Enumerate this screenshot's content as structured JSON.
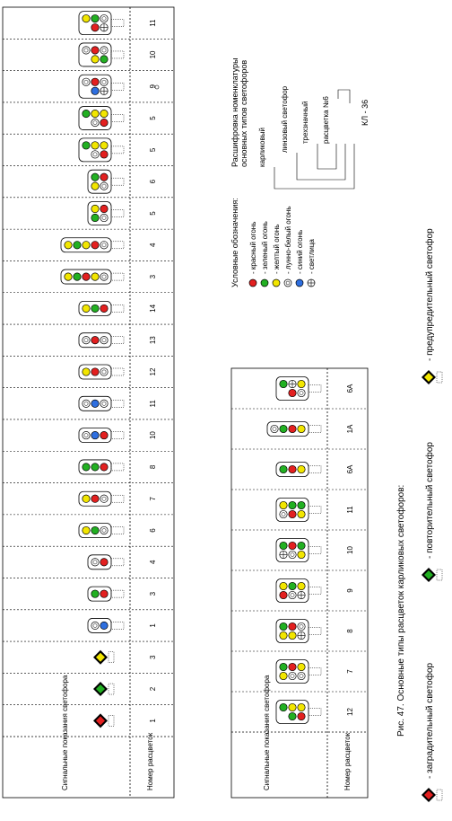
{
  "caption": "Рис. 47. Основные типы расцветок карликовых светофоров:",
  "header_signals": "Сигнальные показания светофора",
  "header_number": "Номер расцветок",
  "legend": {
    "title": "Условные обозначения:",
    "items": [
      {
        "type": "R",
        "label": "- красный огонь"
      },
      {
        "type": "G",
        "label": "- зеленый огонь"
      },
      {
        "type": "Y",
        "label": "- желтый огонь"
      },
      {
        "type": "W",
        "label": "- лунно-белый огонь"
      },
      {
        "type": "B",
        "label": "- синий огонь"
      },
      {
        "type": "X",
        "label": "- светлица"
      }
    ]
  },
  "nomenclature": {
    "title_line1": "Расшифровка номенклатуры",
    "title_line2": "основных типов светофоров",
    "code": "КЛ - 36",
    "labels": [
      "карликовый",
      "линзовый светофор",
      "трехзначный",
      "расцветка №6"
    ]
  },
  "bottom_legend": [
    {
      "type": "R",
      "label": "- заградительный светофор"
    },
    {
      "type": "G",
      "label": "- повторительный светофор"
    },
    {
      "type": "Y",
      "label": "- предупредительный светофор"
    }
  ],
  "upper_table": {
    "columns": [
      {
        "label": "1",
        "lights": [
          "R"
        ],
        "kind": "diamond"
      },
      {
        "label": "2",
        "lights": [
          "G"
        ],
        "kind": "diamond"
      },
      {
        "label": "3",
        "lights": [
          "Y"
        ],
        "kind": "diamond"
      },
      {
        "label": "1",
        "lights": [
          "B",
          "W"
        ]
      },
      {
        "label": "3",
        "lights": [
          "R",
          "G"
        ]
      },
      {
        "label": "4",
        "lights": [
          "R",
          "W"
        ]
      },
      {
        "label": "6",
        "lights": [
          "W",
          "G",
          "Y"
        ]
      },
      {
        "label": "7",
        "lights": [
          "W",
          "R",
          "Y"
        ]
      },
      {
        "label": "8",
        "lights": [
          "R",
          "G",
          "G"
        ]
      },
      {
        "label": "10",
        "lights": [
          "R",
          "B",
          "W"
        ]
      },
      {
        "label": "11",
        "lights": [
          "W",
          "B",
          "W"
        ]
      },
      {
        "label": "12",
        "lights": [
          "W",
          "R",
          "Y"
        ]
      },
      {
        "label": "13",
        "lights": [
          "W",
          "R",
          "W"
        ]
      },
      {
        "label": "14",
        "lights": [
          "R",
          "G",
          "Y"
        ]
      },
      {
        "label": "3",
        "lights": [
          "W",
          "Y",
          "R",
          "G",
          "Y"
        ]
      },
      {
        "label": "4",
        "lights": [
          "W",
          "R",
          "Y",
          "G",
          "Y"
        ]
      },
      {
        "label": "5",
        "lights": [
          [
            "W",
            "G"
          ],
          [
            "R",
            "Y"
          ]
        ]
      },
      {
        "label": "6",
        "lights": [
          [
            "W",
            "Y"
          ],
          [
            "R",
            "G"
          ]
        ]
      },
      {
        "label": "5",
        "lights": [
          [
            "R",
            "W"
          ],
          [
            "Y",
            "Y",
            "G"
          ]
        ]
      },
      {
        "label": "5",
        "lights": [
          [
            "R",
            "W"
          ],
          [
            "Y",
            "Y",
            "G"
          ]
        ]
      },
      {
        "label": "9",
        "lights": [
          [
            "X",
            "B"
          ],
          [
            "W",
            "R",
            "W"
          ]
        ]
      },
      {
        "label": "10",
        "lights": [
          [
            "G",
            "Y"
          ],
          [
            "W",
            "R",
            "W"
          ]
        ]
      },
      {
        "label": "11",
        "lights": [
          [
            "X",
            "R"
          ],
          [
            "W",
            "G",
            "Y"
          ]
        ]
      }
    ]
  },
  "lower_table": {
    "columns": [
      {
        "label": "12",
        "lights": [
          [
            "R",
            "G"
          ],
          [
            "Y",
            "Y",
            "G"
          ]
        ]
      },
      {
        "label": "7",
        "lights": [
          [
            "W",
            "W",
            "Y"
          ],
          [
            "Y",
            "R",
            "G"
          ]
        ]
      },
      {
        "label": "8",
        "lights": [
          [
            "X",
            "Y",
            "Y"
          ],
          [
            "W",
            "R",
            "G"
          ]
        ]
      },
      {
        "label": "9",
        "lights": [
          [
            "X",
            "W",
            "R"
          ],
          [
            "Y",
            "G",
            "Y"
          ]
        ]
      },
      {
        "label": "10",
        "lights": [
          [
            "Y",
            "W",
            "X"
          ],
          [
            "G",
            "R",
            "G"
          ]
        ]
      },
      {
        "label": "11",
        "lights": [
          [
            "Y",
            "R",
            "W"
          ],
          [
            "G",
            "G",
            "Y"
          ]
        ]
      },
      {
        "label": "6А",
        "lights": [
          [
            "Y",
            "R",
            "G"
          ]
        ]
      },
      {
        "label": "1А",
        "lights": [
          [
            "Y",
            "R",
            "G",
            "W"
          ]
        ]
      },
      {
        "label": "6А",
        "lights": [
          [
            "W",
            "R"
          ],
          [
            "Y",
            "X",
            "G"
          ]
        ]
      }
    ]
  },
  "colors": {
    "R": "#e32020",
    "G": "#22b022",
    "Y": "#f2e600",
    "W": "#ffffff",
    "B": "#2e6fe0",
    "X": "#ffffff"
  }
}
